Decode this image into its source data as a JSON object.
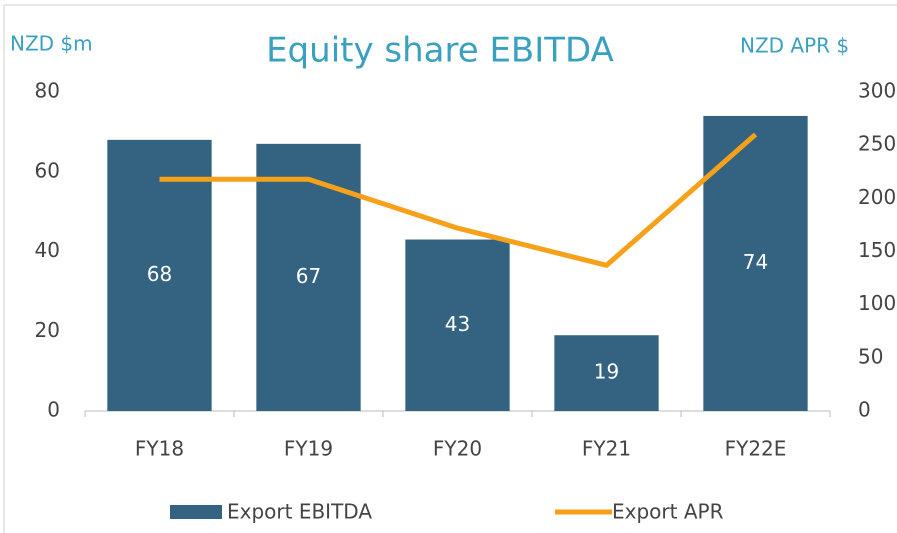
{
  "chart_data": {
    "type": "bar",
    "title": "Equity share EBITDA",
    "ylabel": "NZD $m",
    "y2label": "NZD APR $",
    "categories": [
      "FY18",
      "FY19",
      "FY20",
      "FY21",
      "FY22E"
    ],
    "series": [
      {
        "name": "Export EBITDA",
        "type": "bar",
        "color": "#336380",
        "values": [
          68,
          67,
          43,
          19,
          74
        ]
      },
      {
        "name": "Export APR",
        "type": "line",
        "axis": "y2",
        "color": "#f7a11a",
        "values": [
          218,
          218,
          172,
          137,
          260
        ]
      }
    ],
    "ylim": [
      0,
      80
    ],
    "yticks": [
      0,
      20,
      40,
      60,
      80
    ],
    "y2lim": [
      0,
      300
    ],
    "y2ticks": [
      0,
      50,
      100,
      150,
      200,
      250,
      300
    ],
    "legend": "bottom"
  }
}
